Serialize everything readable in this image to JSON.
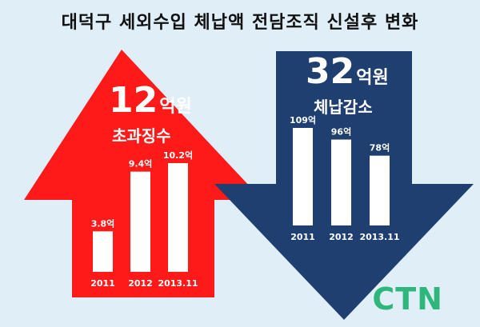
{
  "title": "대덕구 세외수입 체납액 전담조직 신설후 변화",
  "left_panel": {
    "headline_number": "12",
    "headline_unit": "억원",
    "subtitle": "초과징수",
    "arrow_color": "#ff1a1a"
  },
  "right_panel": {
    "headline_number": "32",
    "headline_unit": "억원",
    "subtitle": "체납감소",
    "arrow_color": "#1f3f70"
  },
  "logo": "CTN",
  "chart_data": [
    {
      "type": "bar",
      "categories": [
        "2011",
        "2012",
        "2013.11"
      ],
      "values": [
        3.8,
        9.4,
        10.2
      ],
      "value_labels": [
        "3.8억",
        "9.4억",
        "10.2억"
      ],
      "grid": false
    },
    {
      "type": "bar",
      "categories": [
        "2011",
        "2012",
        "2013.11"
      ],
      "values": [
        109,
        96,
        78
      ],
      "value_labels": [
        "109억",
        "96억",
        "78억"
      ],
      "grid": false
    }
  ]
}
